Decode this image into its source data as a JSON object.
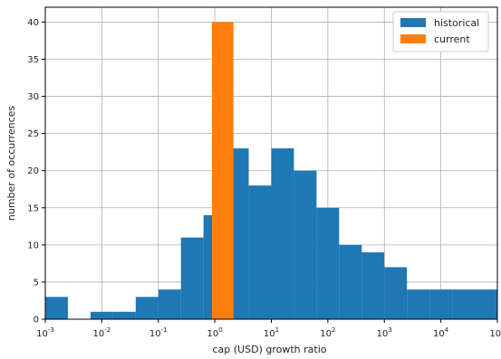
{
  "chart_data": {
    "type": "histogram",
    "xscale": "log",
    "xlim": [
      -3,
      5
    ],
    "ylim": [
      0,
      42
    ],
    "xlabel": "cap (USD) growth ratio",
    "ylabel": "number of occurrences",
    "grid": true,
    "legend_position": "top-right",
    "x_ticks": [
      {
        "exp": -3,
        "base": "10",
        "power": "-3"
      },
      {
        "exp": -2,
        "base": "10",
        "power": "-2"
      },
      {
        "exp": -1,
        "base": "10",
        "power": "-1"
      },
      {
        "exp": 0,
        "base": "10",
        "power": "0"
      },
      {
        "exp": 1,
        "base": "10",
        "power": "1"
      },
      {
        "exp": 2,
        "base": "10",
        "power": "2"
      },
      {
        "exp": 3,
        "base": "10",
        "power": "3"
      },
      {
        "exp": 4,
        "base": "10",
        "power": "4"
      },
      {
        "exp": 5,
        "base": "10",
        "power": "5"
      }
    ],
    "y_ticks": [
      0,
      5,
      10,
      15,
      20,
      25,
      30,
      35,
      40
    ],
    "series": [
      {
        "name": "historical",
        "color": "#1f77b4",
        "bins": [
          {
            "from": -3.0,
            "to": -2.6,
            "count": 3
          },
          {
            "from": -2.6,
            "to": -2.2,
            "count": 0
          },
          {
            "from": -2.2,
            "to": -1.8,
            "count": 1
          },
          {
            "from": -1.8,
            "to": -1.4,
            "count": 1
          },
          {
            "from": -1.4,
            "to": -1.0,
            "count": 3
          },
          {
            "from": -1.0,
            "to": -0.6,
            "count": 4
          },
          {
            "from": -0.6,
            "to": -0.2,
            "count": 11
          },
          {
            "from": -0.2,
            "to": 0.2,
            "count": 14
          },
          {
            "from": 0.2,
            "to": 0.6,
            "count": 23
          },
          {
            "from": 0.6,
            "to": 1.0,
            "count": 18
          },
          {
            "from": 1.0,
            "to": 1.4,
            "count": 23
          },
          {
            "from": 1.4,
            "to": 1.8,
            "count": 20
          },
          {
            "from": 1.8,
            "to": 2.2,
            "count": 15
          },
          {
            "from": 2.2,
            "to": 2.6,
            "count": 10
          },
          {
            "from": 2.6,
            "to": 3.0,
            "count": 9
          },
          {
            "from": 3.0,
            "to": 3.4,
            "count": 7
          },
          {
            "from": 3.4,
            "to": 3.8,
            "count": 4
          },
          {
            "from": 3.8,
            "to": 4.2,
            "count": 4
          },
          {
            "from": 4.2,
            "to": 5.0,
            "count": 4
          }
        ]
      },
      {
        "name": "current",
        "color": "#ff7f0e",
        "bins": [
          {
            "from": -0.05,
            "to": 0.33,
            "count": 40
          }
        ]
      }
    ]
  }
}
